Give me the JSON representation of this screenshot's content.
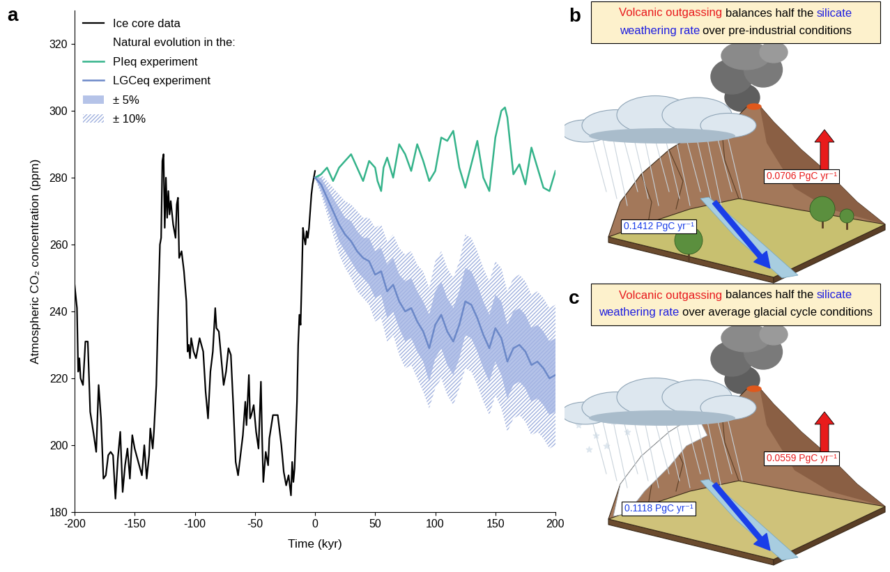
{
  "chart_data": {
    "type": "line",
    "panel_label": "a",
    "xlabel": "Time (kyr)",
    "ylabel": "Atmospheric CO₂ concentration (ppm)",
    "xlim": [
      -200,
      200
    ],
    "ylim": [
      180,
      330
    ],
    "xticks": [
      -200,
      -150,
      -100,
      -50,
      0,
      50,
      100,
      150,
      200
    ],
    "yticks": [
      180,
      200,
      220,
      240,
      260,
      280,
      300,
      320
    ],
    "legend": "upper left",
    "legend_heading": "Natural evolution in the:",
    "series": [
      {
        "name": "Ice core data",
        "type": "line",
        "color": "#000000",
        "x": [
          -200,
          -198,
          -197,
          -196,
          -195,
          -193,
          -191,
          -189,
          -187,
          -184,
          -182,
          -180,
          -178,
          -176,
          -174,
          -172,
          -170,
          -168,
          -166,
          -164,
          -162,
          -160,
          -158,
          -156,
          -154,
          -152,
          -150,
          -147,
          -144,
          -142,
          -140,
          -138,
          -137,
          -135,
          -134,
          -132,
          -130,
          -129,
          -128,
          -127,
          -126,
          -125,
          -124,
          -123,
          -122,
          -121,
          -120,
          -118,
          -116,
          -115,
          -114,
          -113,
          -111,
          -109,
          -107,
          -106,
          -105,
          -104,
          -103,
          -101,
          -99,
          -96,
          -93,
          -91,
          -89,
          -87,
          -85,
          -83,
          -82,
          -80,
          -78,
          -76,
          -74,
          -72,
          -70,
          -68,
          -66,
          -64,
          -62,
          -60,
          -58,
          -57,
          -55,
          -54,
          -53,
          -51,
          -49,
          -47,
          -45,
          -44,
          -43,
          -41,
          -39,
          -38,
          -35,
          -31,
          -28,
          -26,
          -24,
          -22,
          -20,
          -19,
          -18,
          -17,
          -15,
          -14,
          -13,
          -12,
          -11,
          -10,
          -9,
          -8,
          -7,
          -6,
          -5,
          -4,
          -3,
          -2,
          -1,
          0
        ],
        "values": [
          248,
          241,
          222,
          226,
          220,
          218,
          231,
          231,
          210,
          203,
          198,
          218,
          208,
          190,
          191,
          197,
          198,
          197,
          184,
          196,
          204,
          186,
          194,
          199,
          190,
          203,
          199,
          195,
          191,
          200,
          190,
          197,
          205,
          199,
          204,
          218,
          247,
          260,
          262,
          285,
          287,
          265,
          280,
          268,
          276,
          269,
          273,
          266,
          262,
          272,
          274,
          256,
          258,
          252,
          243,
          228,
          230,
          226,
          232,
          228,
          226,
          232,
          228,
          216,
          208,
          222,
          228,
          241,
          235,
          234,
          226,
          218,
          222,
          229,
          227,
          212,
          195,
          191,
          197,
          203,
          213,
          206,
          221,
          208,
          209,
          212,
          204,
          199,
          219,
          202,
          189,
          198,
          194,
          202,
          209,
          209,
          200,
          192,
          188,
          191,
          185,
          195,
          189,
          193,
          213,
          230,
          239,
          236,
          250,
          265,
          262,
          260,
          264,
          262,
          265,
          270,
          275,
          278,
          280,
          282
        ]
      },
      {
        "name": "PIeq experiment",
        "type": "line",
        "color": "#34b38a",
        "x": [
          0,
          5,
          10,
          15,
          20,
          25,
          30,
          35,
          40,
          45,
          50,
          52,
          55,
          57,
          60,
          65,
          70,
          75,
          80,
          85,
          90,
          95,
          100,
          105,
          110,
          115,
          120,
          125,
          130,
          135,
          140,
          145,
          150,
          155,
          158,
          160,
          165,
          170,
          175,
          180,
          185,
          190,
          195,
          200
        ],
        "values": [
          280,
          281,
          283,
          279,
          283,
          285,
          287,
          283,
          279,
          285,
          283,
          279,
          276,
          283,
          286,
          280,
          290,
          287,
          282,
          290,
          285,
          279,
          282,
          292,
          291,
          294,
          283,
          277,
          284,
          291,
          280,
          276,
          292,
          300,
          301,
          298,
          281,
          284,
          278,
          289,
          283,
          277,
          276,
          282
        ]
      },
      {
        "name": "LGCeq experiment",
        "type": "line",
        "color": "#6b88c8",
        "x": [
          0,
          5,
          10,
          15,
          20,
          25,
          30,
          35,
          40,
          45,
          50,
          55,
          60,
          65,
          70,
          75,
          80,
          85,
          90,
          95,
          100,
          105,
          110,
          115,
          120,
          125,
          130,
          135,
          140,
          145,
          150,
          155,
          160,
          165,
          170,
          175,
          180,
          185,
          190,
          195,
          200
        ],
        "values": [
          280,
          278,
          274,
          270,
          266,
          263,
          261,
          258,
          256,
          255,
          251,
          252,
          246,
          248,
          243,
          240,
          241,
          237,
          234,
          229,
          236,
          239,
          234,
          231,
          236,
          243,
          242,
          238,
          233,
          229,
          235,
          232,
          225,
          229,
          230,
          228,
          224,
          225,
          223,
          220,
          221
        ]
      },
      {
        "name": "± 5%",
        "type": "area",
        "color": "#a3b4e3",
        "x": [
          0,
          5,
          10,
          15,
          20,
          25,
          30,
          35,
          40,
          45,
          50,
          55,
          60,
          65,
          70,
          75,
          80,
          85,
          90,
          95,
          100,
          105,
          110,
          115,
          120,
          125,
          130,
          135,
          140,
          145,
          150,
          155,
          160,
          165,
          170,
          175,
          180,
          185,
          190,
          195,
          200
        ],
        "lower": [
          280,
          276,
          271,
          266,
          261,
          258,
          255,
          252,
          250,
          248,
          244,
          245,
          238,
          240,
          235,
          231,
          232,
          228,
          225,
          219,
          226,
          229,
          224,
          221,
          226,
          233,
          232,
          228,
          223,
          219,
          225,
          221,
          214,
          218,
          219,
          217,
          213,
          214,
          212,
          209,
          210
        ],
        "upper": [
          280,
          280,
          277,
          274,
          271,
          268,
          267,
          264,
          262,
          262,
          258,
          259,
          254,
          256,
          251,
          249,
          250,
          246,
          243,
          239,
          246,
          249,
          244,
          241,
          246,
          253,
          252,
          248,
          243,
          239,
          245,
          243,
          236,
          240,
          241,
          239,
          235,
          236,
          234,
          231,
          232
        ]
      },
      {
        "name": "± 10%",
        "type": "hatched_area",
        "color": "#9fb0de",
        "x": [
          0,
          5,
          10,
          15,
          20,
          25,
          30,
          35,
          40,
          45,
          50,
          55,
          60,
          65,
          70,
          75,
          80,
          85,
          90,
          95,
          100,
          105,
          110,
          115,
          120,
          125,
          130,
          135,
          140,
          145,
          150,
          155,
          160,
          165,
          170,
          175,
          180,
          185,
          190,
          195,
          200
        ],
        "lower": [
          280,
          275,
          269,
          263,
          257,
          253,
          250,
          246,
          244,
          242,
          237,
          238,
          231,
          233,
          227,
          223,
          224,
          220,
          216,
          211,
          217,
          220,
          215,
          212,
          217,
          223,
          222,
          218,
          213,
          209,
          215,
          211,
          204,
          208,
          209,
          207,
          203,
          204,
          202,
          199,
          200
        ],
        "upper": [
          280,
          281,
          279,
          277,
          275,
          273,
          272,
          270,
          268,
          268,
          265,
          266,
          261,
          263,
          259,
          257,
          258,
          254,
          252,
          247,
          255,
          258,
          253,
          250,
          255,
          263,
          262,
          258,
          253,
          249,
          255,
          253,
          246,
          250,
          251,
          249,
          245,
          246,
          244,
          241,
          242
        ]
      }
    ]
  },
  "diagrams": [
    {
      "panel": "b",
      "caption": [
        [
          {
            "text": "Volcanic outgassing",
            "color": "#e8191d"
          },
          {
            "text": "balances half the",
            "color": "#000000"
          },
          {
            "text": "silicate",
            "color": "#1f1fe0"
          }
        ],
        [
          {
            "text": "weathering rate",
            "color": "#1f1fe0"
          },
          {
            "text": "over pre-industrial conditions",
            "color": "#000000"
          }
        ]
      ],
      "outgassing_label": "0.0706 PgC yr⁻¹",
      "weathering_label": "0.1412 PgC yr⁻¹"
    },
    {
      "panel": "c",
      "caption": [
        [
          {
            "text": "Volcanic outgassing",
            "color": "#e8191d"
          },
          {
            "text": "balances half the",
            "color": "#000000"
          },
          {
            "text": "silicate",
            "color": "#1f1fe0"
          }
        ],
        [
          {
            "text": "weathering rate",
            "color": "#1f1fe0"
          },
          {
            "text": "over average glacial cycle conditions",
            "color": "#000000"
          }
        ]
      ],
      "outgassing_label": "0.0559 PgC yr⁻¹",
      "weathering_label": "0.1118 PgC yr⁻¹"
    }
  ]
}
